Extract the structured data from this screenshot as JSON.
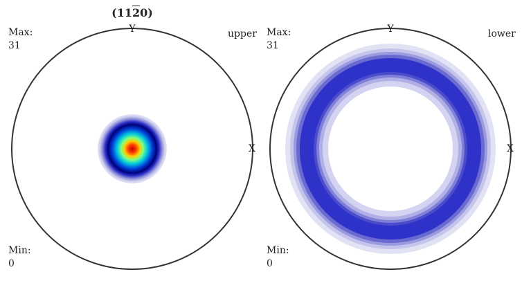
{
  "chart_data": [
    {
      "type": "pole-figure",
      "title_prefix": "(11",
      "title_bar": "2",
      "title_suffix": "0)",
      "hemisphere": "upper",
      "axis_labels": {
        "top": "Y",
        "right": "X"
      },
      "max_label": "Max:",
      "max_value": "31",
      "min_label": "Min:",
      "min_value": "0",
      "distribution": {
        "kind": "central-peak",
        "peak_value": 31,
        "peak_angle_deg": 0,
        "spread_deg": 14
      },
      "colormap": [
        "#ffffff",
        "#dcdcf2",
        "#2a2ec8",
        "#00007a",
        "#00b4f0",
        "#80ff80",
        "#ffff00",
        "#ff8000",
        "#cc0000"
      ]
    },
    {
      "type": "pole-figure",
      "hemisphere": "lower",
      "axis_labels": {
        "top": "Y",
        "right": "X"
      },
      "max_label": "Max:",
      "max_value": "31",
      "min_label": "Min:",
      "min_value": "0",
      "distribution": {
        "kind": "ring",
        "ring_angle_deg": 75,
        "spread_deg": 10
      },
      "colormap": [
        "#ffffff",
        "#dcdcf2",
        "#b8b8e8",
        "#8a8ad8",
        "#5a5acc",
        "#2e32c8"
      ]
    }
  ]
}
